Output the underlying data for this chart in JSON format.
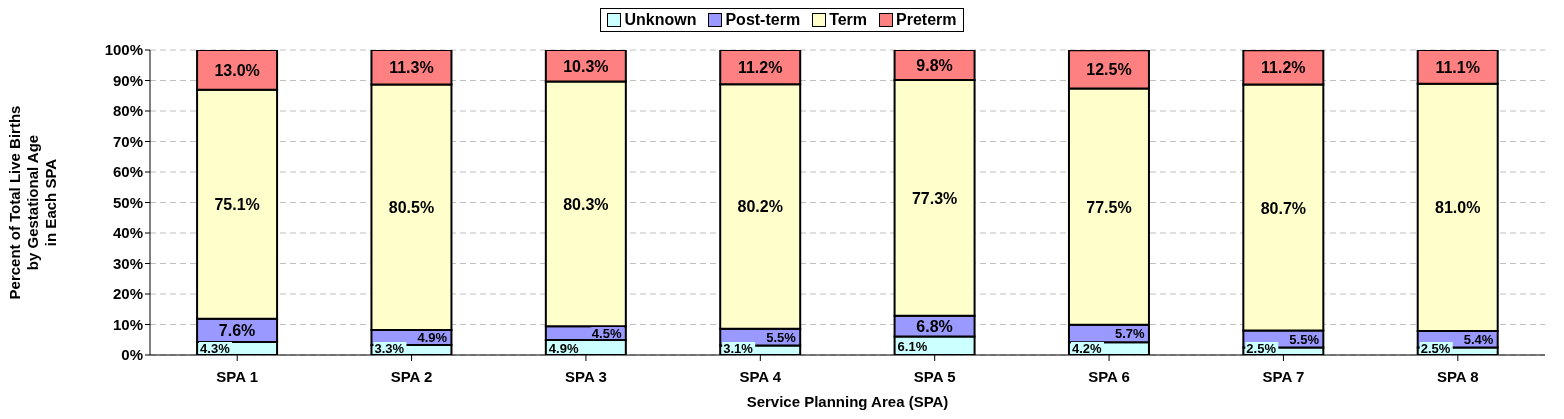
{
  "chart_data": {
    "type": "bar",
    "stacked": true,
    "xlabel": "Service Planning Area (SPA)",
    "ylabel": "Percent of Total Live Births\nby Gestational Age\nin Each SPA",
    "categories": [
      "SPA 1",
      "SPA 2",
      "SPA 3",
      "SPA 4",
      "SPA 5",
      "SPA 6",
      "SPA 7",
      "SPA 8"
    ],
    "series": [
      {
        "name": "Unknown",
        "color": "#ccffff",
        "values": [
          4.3,
          3.3,
          4.9,
          3.1,
          6.1,
          4.2,
          2.5,
          2.5
        ],
        "value_labels": [
          "4.3%",
          "3.3%",
          "4.9%",
          "3.1%",
          "6.1%",
          "4.2%",
          "2.5%",
          "2.5%"
        ]
      },
      {
        "name": "Post-term",
        "color": "#9999ff",
        "values": [
          7.6,
          4.9,
          4.5,
          5.5,
          6.8,
          5.7,
          5.5,
          5.4
        ],
        "value_labels": [
          "7.6%",
          "4.9%",
          "4.5%",
          "5.5%",
          "6.8%",
          "5.7%",
          "5.5%",
          "5.4%"
        ]
      },
      {
        "name": "Term",
        "color": "#ffffcc",
        "values": [
          75.1,
          80.5,
          80.3,
          80.2,
          77.3,
          77.5,
          80.7,
          81.0
        ],
        "value_labels": [
          "75.1%",
          "80.5%",
          "80.3%",
          "80.2%",
          "77.3%",
          "77.5%",
          "80.7%",
          "81.0%"
        ]
      },
      {
        "name": "Preterm",
        "color": "#ff8080",
        "values": [
          13.0,
          11.3,
          10.3,
          11.2,
          9.8,
          12.5,
          11.2,
          11.1
        ],
        "value_labels": [
          "13.0%",
          "11.3%",
          "10.3%",
          "11.2%",
          "9.8%",
          "12.5%",
          "11.2%",
          "11.1%"
        ]
      }
    ],
    "ylim": [
      0,
      100
    ],
    "yticks": [
      {
        "value": 0,
        "label": "0%"
      },
      {
        "value": 10,
        "label": "10%"
      },
      {
        "value": 20,
        "label": "20%"
      },
      {
        "value": 30,
        "label": "30%"
      },
      {
        "value": 40,
        "label": "40%"
      },
      {
        "value": 50,
        "label": "50%"
      },
      {
        "value": 60,
        "label": "60%"
      },
      {
        "value": 70,
        "label": "70%"
      },
      {
        "value": 80,
        "label": "80%"
      },
      {
        "value": 90,
        "label": "90%"
      },
      {
        "value": 100,
        "label": "100%"
      }
    ],
    "grid": "y",
    "legend": "top"
  }
}
